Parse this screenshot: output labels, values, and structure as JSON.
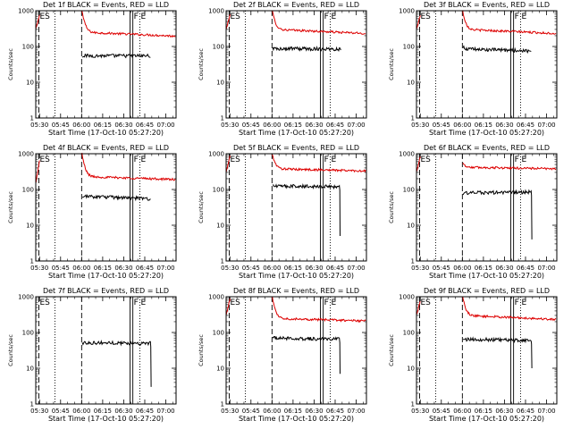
{
  "chart_data": {
    "type": "line",
    "layout": "3x3 grid",
    "yscale": "log",
    "ylim": [
      1,
      1000
    ],
    "y_ticks": [
      "1",
      "10",
      "100",
      "1000"
    ],
    "ylabel": "Counts/sec",
    "xlabel": "Start Time (17-Oct-10 05:27:20)",
    "x_tick_labels": [
      "05:30",
      "05:45",
      "06:00",
      "06:15",
      "06:30",
      "06:45",
      "07:00"
    ],
    "x_tick_minutes": [
      30,
      45,
      60,
      75,
      90,
      105,
      120
    ],
    "xlim_minutes": [
      27.3,
      127.3
    ],
    "legend_text": "BLACK = Events, RED = LLD",
    "series_colors": {
      "events": "#000000",
      "lld": "#dd0000"
    },
    "time_markers": [
      {
        "label": "ES",
        "minute": 29.5,
        "style": "dashed"
      },
      {
        "label": "",
        "minute": 41.0,
        "style": "dotted"
      },
      {
        "label": "",
        "minute": 60.0,
        "style": "dashed"
      },
      {
        "label": "",
        "minute": 94.5,
        "style": "solid"
      },
      {
        "label": "F",
        "minute": 96.5,
        "style": "solid"
      },
      {
        "label": "E",
        "minute": 101.5,
        "style": "dotted"
      }
    ],
    "panels": [
      {
        "title": "Det 1f BLACK = Events, RED = LLD",
        "detector": "1f",
        "lld": {
          "pre_start": 300,
          "pre_level": 800,
          "start": 1000,
          "level": 250,
          "end": 195
        },
        "lld_stop": 127,
        "events": {
          "start": 55,
          "level": 55,
          "end": 55
        },
        "events_stop": 109,
        "drop": null
      },
      {
        "title": "Det 2f BLACK = Events, RED = LLD",
        "detector": "2f",
        "lld": {
          "pre_start": 300,
          "pre_level": 800,
          "start": 1000,
          "level": 300,
          "end": 230
        },
        "lld_stop": 127,
        "events": {
          "start": 90,
          "level": 88,
          "end": 85
        },
        "events_stop": 109,
        "drop": null
      },
      {
        "title": "Det 3f BLACK = Events, RED = LLD",
        "detector": "3f",
        "lld": {
          "pre_start": 300,
          "pre_level": 800,
          "start": 1000,
          "level": 300,
          "end": 230
        },
        "lld_stop": 127,
        "events": {
          "start": 95,
          "level": 85,
          "end": 75
        },
        "events_stop": 109,
        "drop": null
      },
      {
        "title": "Det 4f BLACK = Events, RED = LLD",
        "detector": "4f",
        "lld": {
          "pre_start": 150,
          "pre_level": 700,
          "start": 1000,
          "level": 230,
          "end": 190
        },
        "lld_stop": 127,
        "events": {
          "start": 55,
          "level": 65,
          "end": 55
        },
        "events_stop": 109,
        "drop": null
      },
      {
        "title": "Det 5f BLACK = Events, RED = LLD",
        "detector": "5f",
        "lld": {
          "pre_start": 300,
          "pre_level": 900,
          "start": 1000,
          "level": 380,
          "end": 330
        },
        "lld_stop": 127,
        "events": {
          "start": 130,
          "level": 125,
          "end": 120
        },
        "events_stop": 108,
        "drop": 5
      },
      {
        "title": "Det 6f BLACK = Events, RED = LLD",
        "detector": "6f",
        "lld": {
          "pre_start": 300,
          "pre_level": 900,
          "start": 550,
          "level": 420,
          "end": 380
        },
        "lld_stop": 127,
        "events": {
          "start": 75,
          "level": 80,
          "end": 85
        },
        "events_stop": 109,
        "drop": 4
      },
      {
        "title": "Det 7f BLACK = Events, RED = LLD",
        "detector": "7f",
        "lld": null,
        "lld_stop": 127,
        "events": {
          "start": 50,
          "level": 52,
          "end": 50
        },
        "events_stop": 109,
        "drop": 3
      },
      {
        "title": "Det 8f BLACK = Events, RED = LLD",
        "detector": "8f",
        "lld": {
          "pre_start": 300,
          "pre_level": 900,
          "start": 1000,
          "level": 250,
          "end": 210
        },
        "lld_stop": 127,
        "events": {
          "start": 75,
          "level": 70,
          "end": 65
        },
        "events_stop": 108,
        "drop": 7
      },
      {
        "title": "Det 9f BLACK = Events, RED = LLD",
        "detector": "9f",
        "lld": {
          "pre_start": 300,
          "pre_level": 800,
          "start": 1000,
          "level": 300,
          "end": 230
        },
        "lld_stop": 127,
        "events": {
          "start": 70,
          "level": 65,
          "end": 60
        },
        "events_stop": 109,
        "drop": 10
      }
    ]
  }
}
